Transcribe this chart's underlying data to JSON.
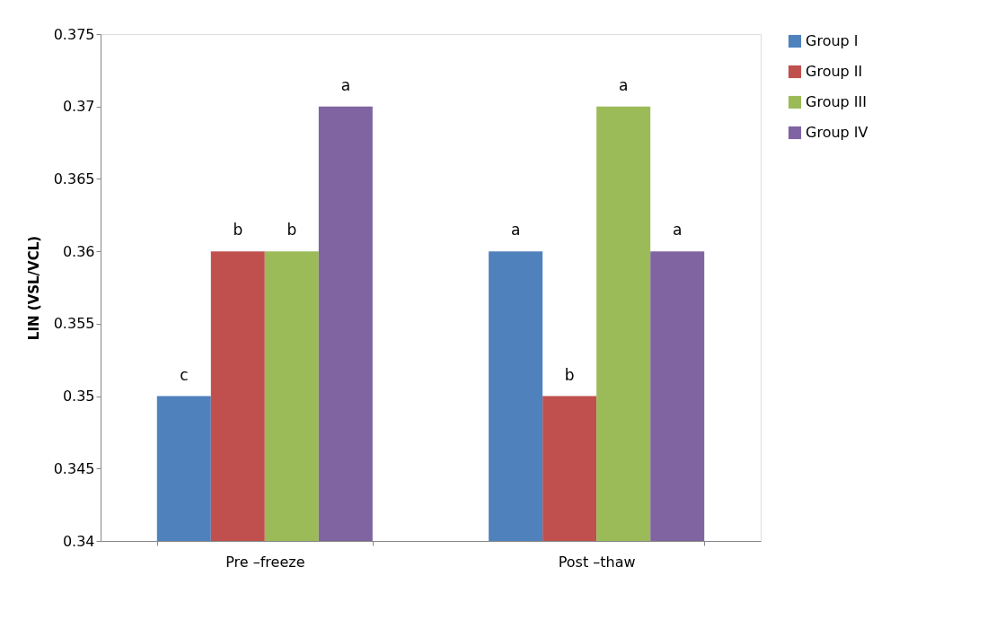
{
  "chart_data": {
    "type": "bar",
    "ylabel": "LIN (VSL/VCL)",
    "categories": [
      "Pre –freeze",
      "Post –thaw"
    ],
    "series": [
      {
        "name": "Group I",
        "color": "#4f81bd",
        "values": [
          0.35,
          0.36
        ]
      },
      {
        "name": "Group II",
        "color": "#c0504d",
        "values": [
          0.36,
          0.35
        ]
      },
      {
        "name": "Group III",
        "color": "#9bbb59",
        "values": [
          0.36,
          0.37
        ]
      },
      {
        "name": "Group IV",
        "color": "#8064a2",
        "values": [
          0.37,
          0.36
        ]
      }
    ],
    "ylim": [
      0.34,
      0.375
    ],
    "yticks": [
      0.34,
      0.345,
      0.35,
      0.355,
      0.36,
      0.365,
      0.37,
      0.375
    ],
    "grid": false,
    "legend": "right",
    "annotations": [
      "c",
      "b",
      "b",
      "a",
      "a",
      "b",
      "a",
      "a"
    ]
  }
}
